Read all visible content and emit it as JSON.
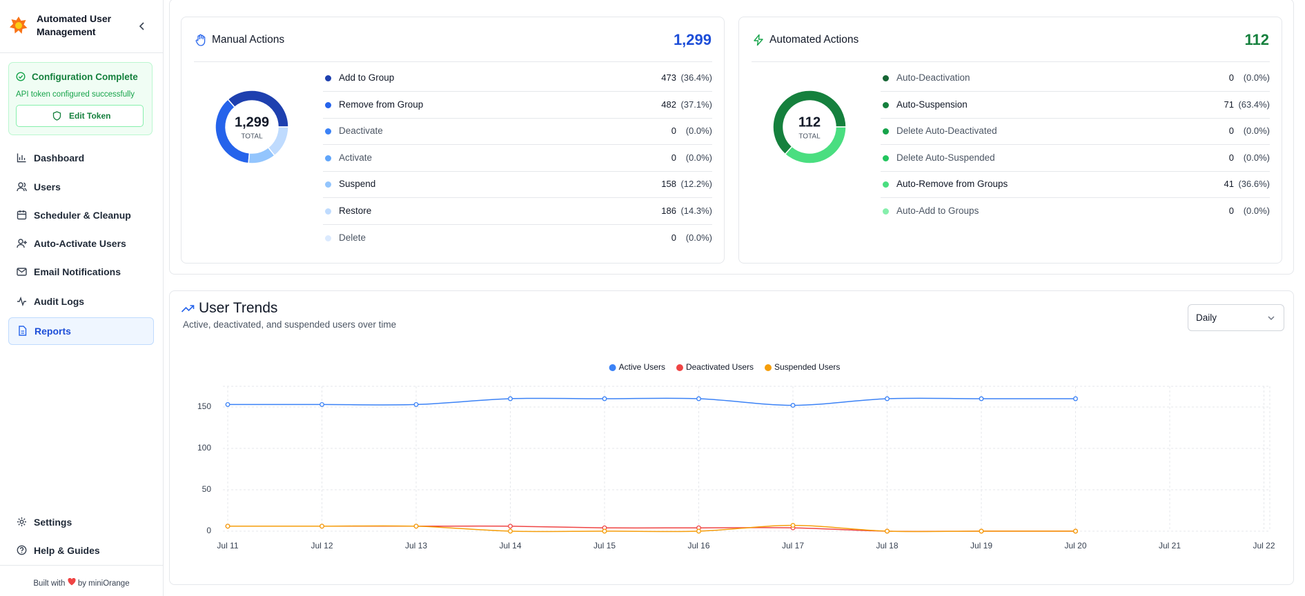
{
  "sidebar": {
    "app_name": "Automated User Management",
    "config_title": "Configuration Complete",
    "config_message": "API token configured successfully",
    "config_button": "Edit Token",
    "nav": [
      "Dashboard",
      "Users",
      "Scheduler & Cleanup",
      "Auto-Activate Users",
      "Email Notifications",
      "Audit Logs",
      "Reports"
    ],
    "bottom_nav": [
      "Settings",
      "Help & Guides"
    ],
    "footer_prefix": "Built with",
    "footer_suffix": "by miniOrange"
  },
  "period_select": "Daily",
  "chart_data": [
    {
      "type": "donut",
      "title": "Manual Actions",
      "total": "1,299",
      "total_caption": "TOTAL",
      "categories": [
        "Add to Group",
        "Remove from Group",
        "Deactivate",
        "Activate",
        "Suspend",
        "Restore",
        "Delete"
      ],
      "values": [
        473,
        482,
        0,
        0,
        158,
        186,
        0
      ],
      "percent_labels": [
        "(36.4%)",
        "(37.1%)",
        "(0.0%)",
        "(0.0%)",
        "(12.2%)",
        "(14.3%)",
        "(0.0%)"
      ],
      "colors": [
        "#1e40af",
        "#2563eb",
        "#3b82f6",
        "#60a5fa",
        "#93c5fd",
        "#bfdbfe",
        "#dbeafe"
      ],
      "total_color": "#1d4ed8"
    },
    {
      "type": "donut",
      "title": "Automated Actions",
      "total": "112",
      "total_caption": "TOTAL",
      "categories": [
        "Auto-Deactivation",
        "Auto-Suspension",
        "Delete Auto-Deactivated",
        "Delete Auto-Suspended",
        "Auto-Remove from Groups",
        "Auto-Add to Groups"
      ],
      "values": [
        0,
        71,
        0,
        0,
        41,
        0
      ],
      "percent_labels": [
        "(0.0%)",
        "(63.4%)",
        "(0.0%)",
        "(0.0%)",
        "(36.6%)",
        "(0.0%)"
      ],
      "colors": [
        "#166534",
        "#15803d",
        "#16a34a",
        "#22c55e",
        "#4ade80",
        "#86efac"
      ],
      "total_color": "#15803d"
    },
    {
      "type": "line",
      "title": "User Trends",
      "subtitle": "Active, deactivated, and suspended users over time",
      "categories": [
        "Jul 11",
        "Jul 12",
        "Jul 13",
        "Jul 14",
        "Jul 15",
        "Jul 16",
        "Jul 17",
        "Jul 18",
        "Jul 19",
        "Jul 20",
        "Jul 21",
        "Jul 22"
      ],
      "series": [
        {
          "name": "Active Users",
          "color": "#3b82f6",
          "values": [
            153,
            153,
            153,
            160,
            160,
            160,
            152,
            160,
            160,
            160,
            null,
            null
          ]
        },
        {
          "name": "Deactivated Users",
          "color": "#ef4444",
          "values": [
            6,
            6,
            6,
            6,
            4,
            4,
            4,
            0,
            0,
            0,
            null,
            null
          ]
        },
        {
          "name": "Suspended Users",
          "color": "#f59e0b",
          "values": [
            6,
            6,
            6,
            0,
            0,
            0,
            7,
            0,
            0,
            0,
            null,
            null
          ]
        }
      ],
      "ylim": [
        0,
        175
      ],
      "yticks": [
        0,
        50,
        100,
        150
      ],
      "grid": true,
      "legend": "top"
    }
  ]
}
